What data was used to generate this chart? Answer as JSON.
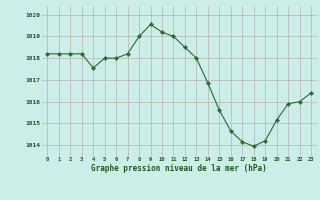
{
  "x": [
    0,
    1,
    2,
    3,
    4,
    5,
    6,
    7,
    8,
    9,
    10,
    11,
    12,
    13,
    14,
    15,
    16,
    17,
    18,
    19,
    20,
    21,
    22,
    23
  ],
  "y": [
    1018.2,
    1018.2,
    1018.2,
    1018.2,
    1017.55,
    1018.0,
    1018.0,
    1018.2,
    1019.0,
    1019.55,
    1019.2,
    1019.0,
    1018.5,
    1018.0,
    1016.85,
    1015.6,
    1014.65,
    1014.15,
    1013.95,
    1014.2,
    1015.15,
    1015.9,
    1016.0,
    1016.4
  ],
  "line_color": "#2d6a2d",
  "marker": "D",
  "marker_size": 2.2,
  "bg_color": "#cceee8",
  "grid_color": "#b8b0b0",
  "xlabel": "Graphe pression niveau de la mer (hPa)",
  "xlabel_color": "#1a5a1a",
  "tick_label_color": "#1a5a1a",
  "ylim": [
    1013.5,
    1020.4
  ],
  "yticks": [
    1014,
    1015,
    1016,
    1017,
    1018,
    1019,
    1020
  ],
  "xticks": [
    0,
    1,
    2,
    3,
    4,
    5,
    6,
    7,
    8,
    9,
    10,
    11,
    12,
    13,
    14,
    15,
    16,
    17,
    18,
    19,
    20,
    21,
    22,
    23
  ]
}
